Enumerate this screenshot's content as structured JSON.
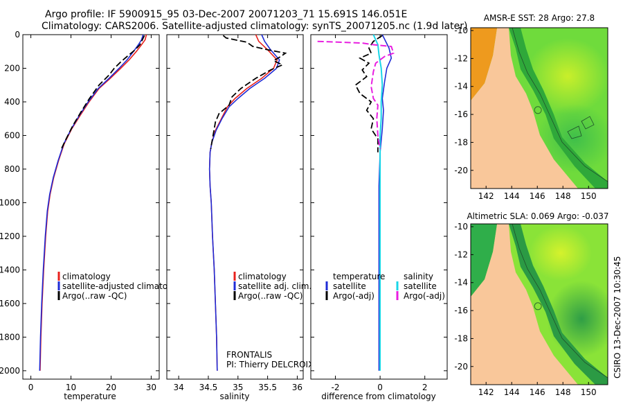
{
  "figure": {
    "title_line1": "Argo profile: IF 5900915_95 03-Dec-2007 20071203_71 15.691S 146.051E",
    "title_line2": "Climatology: CARS2006. Satellite-adjusted climatology: synTS_20071205.nc (1.9d later)",
    "credit": "CSIRO 13-Dec-2007 10:30:45",
    "platform_name": "FRONTALIS",
    "pi_name": "PI: Thierry DELCROIX"
  },
  "colors": {
    "climatology": "#e8201c",
    "satellite": "#1e2bd6",
    "argo": "#000000",
    "satellite_diff": "#19d6e8",
    "argo_adj_diff": "#e81ee0",
    "land": "#f9c79a",
    "sea_green": "#4ed35a"
  },
  "chart_data": [
    {
      "type": "line",
      "panel": "temperature",
      "xlabel": "temperature",
      "xlim": [
        -2,
        32
      ],
      "ylim": [
        2050,
        0
      ],
      "x_ticks": [
        0,
        10,
        20,
        30
      ],
      "y_ticks": [
        0,
        200,
        400,
        600,
        800,
        1000,
        1200,
        1400,
        1600,
        1800,
        2000
      ],
      "legend": [
        "climatology",
        "satellite-adjusted climatology",
        "Argo(..raw -QC)"
      ],
      "series": [
        {
          "name": "climatology",
          "points": [
            [
              28.8,
              0
            ],
            [
              28.5,
              30
            ],
            [
              27.6,
              60
            ],
            [
              26.3,
              100
            ],
            [
              24.5,
              150
            ],
            [
              22.4,
              200
            ],
            [
              19.8,
              260
            ],
            [
              17.0,
              320
            ],
            [
              14.5,
              400
            ],
            [
              12.3,
              480
            ],
            [
              10.2,
              560
            ],
            [
              8.3,
              650
            ],
            [
              6.9,
              750
            ],
            [
              5.7,
              850
            ],
            [
              4.8,
              950
            ],
            [
              4.2,
              1050
            ],
            [
              3.7,
              1200
            ],
            [
              3.2,
              1400
            ],
            [
              2.8,
              1600
            ],
            [
              2.5,
              1800
            ],
            [
              2.3,
              2000
            ]
          ]
        },
        {
          "name": "satellite-adjusted climatology",
          "points": [
            [
              28.0,
              0
            ],
            [
              27.6,
              30
            ],
            [
              26.8,
              60
            ],
            [
              25.6,
              100
            ],
            [
              24.0,
              150
            ],
            [
              22.0,
              200
            ],
            [
              19.5,
              260
            ],
            [
              16.8,
              320
            ],
            [
              14.3,
              400
            ],
            [
              12.1,
              480
            ],
            [
              10.1,
              560
            ],
            [
              8.2,
              650
            ],
            [
              6.8,
              750
            ],
            [
              5.6,
              850
            ],
            [
              4.7,
              950
            ],
            [
              4.1,
              1050
            ],
            [
              3.6,
              1200
            ],
            [
              3.1,
              1400
            ],
            [
              2.7,
              1600
            ],
            [
              2.4,
              1800
            ],
            [
              2.2,
              2000
            ]
          ]
        },
        {
          "name": "Argo(..raw -QC)",
          "points": [
            [
              28.3,
              5
            ],
            [
              27.8,
              30
            ],
            [
              27.2,
              60
            ],
            [
              26.0,
              90
            ],
            [
              24.0,
              130
            ],
            [
              22.5,
              160
            ],
            [
              20.8,
              200
            ],
            [
              19.5,
              240
            ],
            [
              17.0,
              300
            ],
            [
              14.6,
              380
            ],
            [
              12.5,
              460
            ],
            [
              10.5,
              540
            ],
            [
              8.8,
              620
            ],
            [
              7.6,
              680
            ]
          ]
        }
      ]
    },
    {
      "type": "line",
      "panel": "salinity",
      "xlabel": "salinity",
      "xlim": [
        33.8,
        36.1
      ],
      "ylim": [
        2050,
        0
      ],
      "x_ticks": [
        34,
        34.5,
        35,
        35.5,
        36
      ],
      "legend": [
        "climatology",
        "satellite adj. clim.",
        "Argo(..raw -QC)"
      ],
      "series": [
        {
          "name": "climatology",
          "points": [
            [
              35.3,
              0
            ],
            [
              35.35,
              40
            ],
            [
              35.5,
              90
            ],
            [
              35.66,
              150
            ],
            [
              35.6,
              200
            ],
            [
              35.4,
              260
            ],
            [
              35.15,
              320
            ],
            [
              34.95,
              380
            ],
            [
              34.82,
              430
            ],
            [
              34.72,
              500
            ],
            [
              34.62,
              570
            ],
            [
              34.56,
              640
            ],
            [
              34.53,
              700
            ],
            [
              34.52,
              800
            ],
            [
              34.53,
              900
            ],
            [
              34.55,
              1000
            ],
            [
              34.57,
              1200
            ],
            [
              34.6,
              1400
            ],
            [
              34.62,
              1600
            ],
            [
              34.64,
              1800
            ],
            [
              34.65,
              2000
            ]
          ]
        },
        {
          "name": "satellite adj. clim.",
          "points": [
            [
              35.4,
              0
            ],
            [
              35.45,
              40
            ],
            [
              35.55,
              90
            ],
            [
              35.7,
              150
            ],
            [
              35.65,
              200
            ],
            [
              35.45,
              260
            ],
            [
              35.2,
              320
            ],
            [
              35.0,
              380
            ],
            [
              34.85,
              430
            ],
            [
              34.73,
              500
            ],
            [
              34.63,
              570
            ],
            [
              34.56,
              640
            ],
            [
              34.53,
              700
            ],
            [
              34.52,
              800
            ],
            [
              34.53,
              900
            ],
            [
              34.55,
              1000
            ],
            [
              34.57,
              1200
            ],
            [
              34.6,
              1400
            ],
            [
              34.62,
              1600
            ],
            [
              34.64,
              1800
            ],
            [
              34.65,
              2000
            ]
          ]
        },
        {
          "name": "Argo(..raw -QC)",
          "points": [
            [
              34.75,
              5
            ],
            [
              34.8,
              20
            ],
            [
              35.15,
              45
            ],
            [
              35.25,
              70
            ],
            [
              35.5,
              90
            ],
            [
              35.8,
              110
            ],
            [
              35.72,
              130
            ],
            [
              35.6,
              155
            ],
            [
              35.75,
              180
            ],
            [
              35.55,
              210
            ],
            [
              35.3,
              260
            ],
            [
              35.05,
              320
            ],
            [
              34.9,
              370
            ],
            [
              34.85,
              420
            ],
            [
              34.68,
              470
            ],
            [
              34.62,
              520
            ],
            [
              34.58,
              600
            ],
            [
              34.54,
              680
            ]
          ]
        }
      ]
    },
    {
      "type": "line",
      "panel": "difference",
      "xlabel": "difference from climatology",
      "xlim": [
        -3.1,
        3.0
      ],
      "ylim": [
        2050,
        0
      ],
      "x_ticks": [
        -2,
        0,
        2
      ],
      "legend": [
        "temperature",
        "satellite",
        "Argo(-adj)",
        "salinity",
        "satellite",
        "Argo(-adj)"
      ],
      "series": [
        {
          "name": "temperature satellite",
          "points": [
            [
              0.1,
              0
            ],
            [
              0.4,
              80
            ],
            [
              0.5,
              140
            ],
            [
              0.3,
              200
            ],
            [
              0.2,
              280
            ],
            [
              0.1,
              380
            ],
            [
              0.15,
              450
            ],
            [
              0.1,
              560
            ],
            [
              0.0,
              700
            ],
            [
              -0.05,
              900
            ],
            [
              -0.05,
              1200
            ],
            [
              -0.05,
              1500
            ],
            [
              -0.05,
              2000
            ]
          ]
        },
        {
          "name": "temperature Argo(-adj)",
          "points": [
            [
              0.1,
              5
            ],
            [
              -0.3,
              40
            ],
            [
              -0.5,
              80
            ],
            [
              -0.4,
              110
            ],
            [
              -0.9,
              140
            ],
            [
              -0.5,
              170
            ],
            [
              -0.8,
              210
            ],
            [
              -0.6,
              250
            ],
            [
              -1.1,
              300
            ],
            [
              -0.9,
              350
            ],
            [
              -0.4,
              400
            ],
            [
              -0.6,
              450
            ],
            [
              -0.3,
              500
            ],
            [
              -0.4,
              560
            ],
            [
              -0.1,
              620
            ],
            [
              -0.1,
              700
            ]
          ]
        },
        {
          "name": "salinity satellite",
          "points": [
            [
              -0.3,
              0
            ],
            [
              -0.1,
              60
            ],
            [
              -0.05,
              120
            ],
            [
              0.05,
              200
            ],
            [
              0.1,
              300
            ],
            [
              0.05,
              400
            ],
            [
              0.05,
              500
            ],
            [
              0.0,
              600
            ],
            [
              0.0,
              800
            ],
            [
              0.0,
              1200
            ],
            [
              0.0,
              1600
            ],
            [
              0.0,
              2000
            ]
          ]
        },
        {
          "name": "salinity Argo(-adj)",
          "points": [
            [
              -2.8,
              40
            ],
            [
              -0.8,
              50
            ],
            [
              -0.3,
              60
            ],
            [
              0.5,
              70
            ],
            [
              0.6,
              110
            ],
            [
              0.2,
              130
            ],
            [
              -0.2,
              170
            ],
            [
              -0.3,
              220
            ],
            [
              -0.4,
              310
            ],
            [
              -0.3,
              380
            ],
            [
              -0.1,
              420
            ],
            [
              -0.15,
              500
            ],
            [
              -0.1,
              600
            ],
            [
              0.0,
              680
            ]
          ]
        }
      ]
    },
    {
      "type": "heatmap",
      "panel": "map_sst",
      "title": "AMSR-E SST: 28 Argo: 27.8",
      "x_ticks": [
        142,
        144,
        146,
        148,
        150
      ],
      "y_ticks": [
        -10,
        -12,
        -14,
        -16,
        -18,
        -20
      ],
      "xlim": [
        140.8,
        151.5
      ],
      "ylim": [
        -21.3,
        -9.8
      ],
      "argo_position": [
        146.05,
        -15.69
      ]
    },
    {
      "type": "heatmap",
      "panel": "map_sla",
      "title": "Altimetric SLA: 0.069 Argo: -0.037",
      "x_ticks": [
        142,
        144,
        146,
        148,
        150
      ],
      "y_ticks": [
        -10,
        -12,
        -14,
        -16,
        -18,
        -20
      ],
      "xlim": [
        140.8,
        151.5
      ],
      "ylim": [
        -21.3,
        -9.8
      ],
      "argo_position": [
        146.05,
        -15.69
      ]
    }
  ]
}
